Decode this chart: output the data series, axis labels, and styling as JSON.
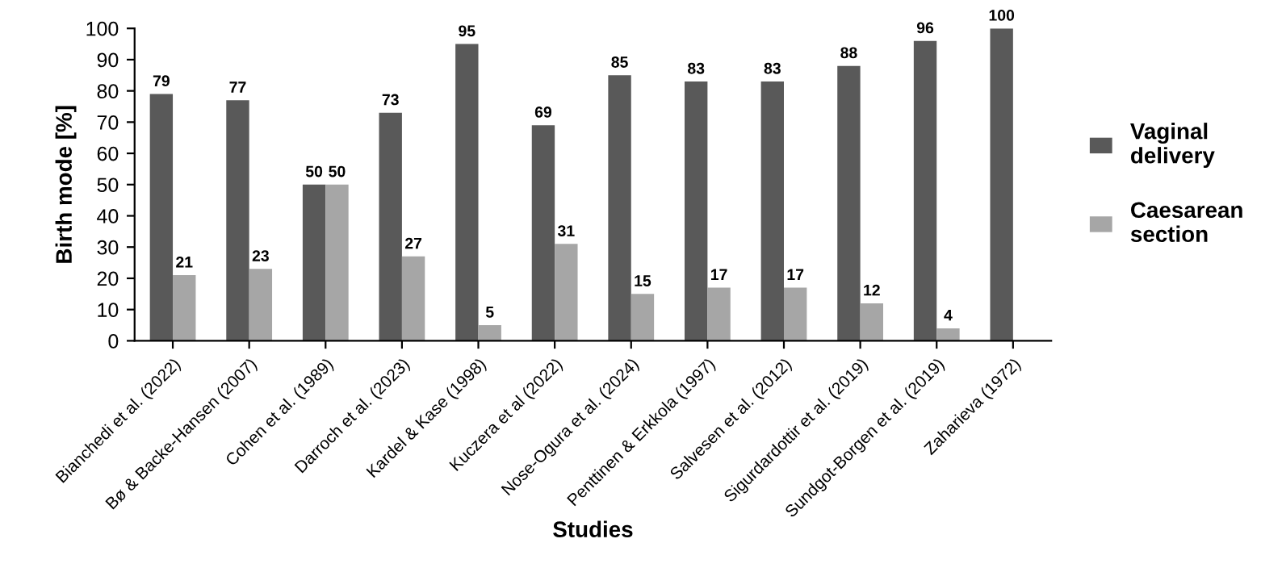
{
  "chart_data": {
    "type": "bar",
    "xlabel": "Studies",
    "ylabel": "Birth mode [%]",
    "categories": [
      "Bianchedi et al. (2022)",
      "Bø & Backe-Hansen (2007)",
      "Cohen et al. (1989)",
      "Darroch et al. (2023)",
      "Kardel & Kase (1998)",
      "Kuczera et al (2022)",
      "Nose-Ogura et al. (2024)",
      "Penttinen & Erkkola (1997)",
      "Salvesen et al. (2012)",
      "Sigurdardottir et al. (2019)",
      "Sundgot-Borgen et al. (2019)",
      "Zaharieva (1972)"
    ],
    "series": [
      {
        "name": "Vaginal delivery",
        "color": "#595959",
        "values": [
          79,
          77,
          50,
          73,
          95,
          69,
          85,
          83,
          83,
          88,
          96,
          100
        ]
      },
      {
        "name": "Caesarean section",
        "color": "#a6a6a6",
        "values": [
          21,
          23,
          50,
          27,
          5,
          31,
          15,
          17,
          17,
          12,
          4,
          null
        ]
      }
    ],
    "ylim": [
      0,
      100
    ],
    "yticks": [
      0,
      10,
      20,
      30,
      40,
      50,
      60,
      70,
      80,
      90,
      100
    ],
    "data_labels": true,
    "grid": false,
    "legend": "right"
  }
}
